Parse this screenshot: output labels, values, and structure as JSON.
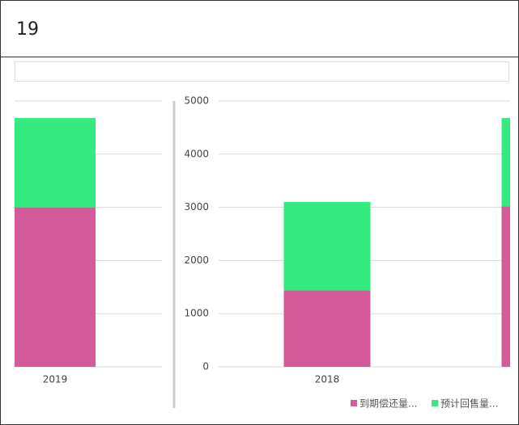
{
  "header": "19",
  "chart_data": [
    {
      "type": "bar",
      "categories": [
        "2019"
      ],
      "series": [
        {
          "name": "到期偿还量...",
          "color": "#d45a9a",
          "values": [
            3000
          ]
        },
        {
          "name": "预计回售量...",
          "color": "#33eb7f",
          "values": [
            1680
          ]
        }
      ],
      "ylim": [
        0,
        5000
      ],
      "yticks": [
        0,
        1000,
        2000,
        3000,
        4000,
        5000
      ],
      "grid": true
    },
    {
      "type": "bar",
      "categories": [
        "2018",
        null
      ],
      "series": [
        {
          "name": "到期偿还量...",
          "color": "#d45a9a",
          "values": [
            1440,
            3020
          ]
        },
        {
          "name": "预计回售量...",
          "color": "#33eb7f",
          "values": [
            1660,
            1660
          ]
        }
      ],
      "ylim": [
        0,
        5000
      ],
      "yticks": [
        0,
        1000,
        2000,
        3000,
        4000,
        5000
      ],
      "grid": true,
      "legend": "bottom-right"
    }
  ]
}
